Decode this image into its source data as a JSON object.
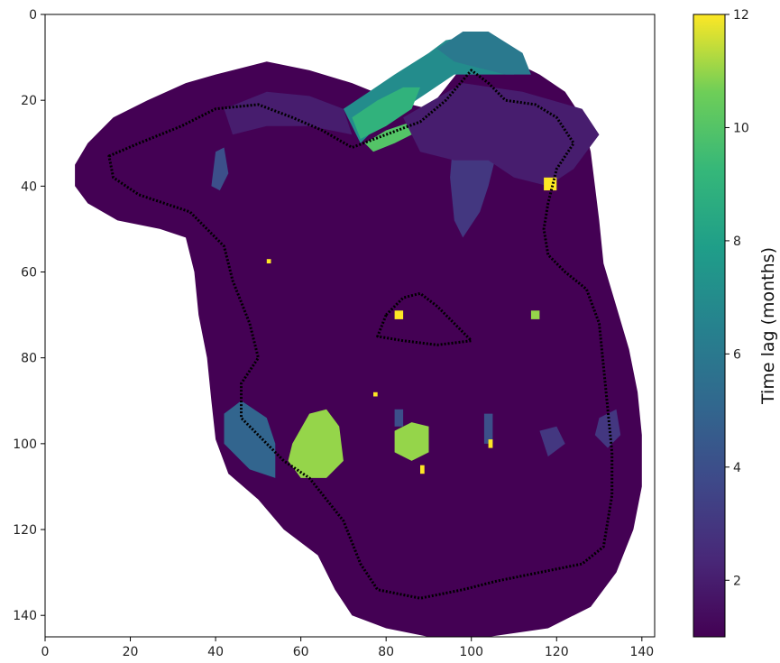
{
  "chart_data": {
    "type": "heatmap",
    "title": "",
    "xlabel": "",
    "ylabel": "",
    "xlim": [
      0,
      143
    ],
    "ylim": [
      0,
      145
    ],
    "y_inverted": true,
    "x_ticks": [
      0,
      20,
      40,
      60,
      80,
      100,
      120,
      140
    ],
    "x_tick_labels": [
      "0",
      "20",
      "40",
      "60",
      "80",
      "100",
      "120",
      "140"
    ],
    "y_ticks": [
      0,
      20,
      40,
      60,
      80,
      100,
      120,
      140
    ],
    "y_tick_labels": [
      "0",
      "20",
      "40",
      "60",
      "80",
      "100",
      "120",
      "140"
    ],
    "colormap": "viridis",
    "colorbar": {
      "label": "Time lag (months)",
      "min": 1,
      "max": 12,
      "ticks": [
        2,
        4,
        6,
        8,
        10,
        12
      ],
      "tick_labels": [
        "2",
        "4",
        "6",
        "8",
        "10",
        "12"
      ]
    },
    "background_value": 1,
    "domain_outline": [
      [
        7,
        35
      ],
      [
        10,
        30
      ],
      [
        16,
        24
      ],
      [
        24,
        20
      ],
      [
        33,
        16
      ],
      [
        40,
        14
      ],
      [
        52,
        11
      ],
      [
        62,
        13
      ],
      [
        72,
        16
      ],
      [
        82,
        20
      ],
      [
        90,
        22
      ],
      [
        98,
        12
      ],
      [
        102,
        8
      ],
      [
        108,
        10
      ],
      [
        116,
        14
      ],
      [
        122,
        18
      ],
      [
        126,
        24
      ],
      [
        128,
        32
      ],
      [
        129,
        40
      ],
      [
        130,
        48
      ],
      [
        131,
        58
      ],
      [
        134,
        68
      ],
      [
        137,
        78
      ],
      [
        139,
        88
      ],
      [
        140,
        98
      ],
      [
        140,
        110
      ],
      [
        138,
        120
      ],
      [
        134,
        130
      ],
      [
        128,
        138
      ],
      [
        118,
        143
      ],
      [
        104,
        145
      ],
      [
        90,
        145
      ],
      [
        80,
        143
      ],
      [
        72,
        140
      ],
      [
        68,
        134
      ],
      [
        64,
        126
      ],
      [
        56,
        120
      ],
      [
        50,
        113
      ],
      [
        43,
        107
      ],
      [
        40,
        99
      ],
      [
        39,
        90
      ],
      [
        38,
        80
      ],
      [
        36,
        70
      ],
      [
        35,
        60
      ],
      [
        33,
        52
      ],
      [
        27,
        50
      ],
      [
        17,
        48
      ],
      [
        10,
        44
      ],
      [
        7,
        40
      ]
    ],
    "basin_outline": [
      [
        15,
        33
      ],
      [
        22,
        30
      ],
      [
        32,
        26
      ],
      [
        40,
        22
      ],
      [
        50,
        21
      ],
      [
        58,
        24
      ],
      [
        65,
        27
      ],
      [
        72,
        31
      ],
      [
        80,
        28
      ],
      [
        88,
        25
      ],
      [
        94,
        20
      ],
      [
        100,
        13
      ],
      [
        104,
        16
      ],
      [
        108,
        20
      ],
      [
        115,
        21
      ],
      [
        120,
        24
      ],
      [
        124,
        30
      ],
      [
        120,
        36
      ],
      [
        118,
        44
      ],
      [
        117,
        50
      ],
      [
        118,
        56
      ],
      [
        122,
        60
      ],
      [
        127,
        64
      ],
      [
        130,
        72
      ],
      [
        131,
        82
      ],
      [
        132,
        92
      ],
      [
        133,
        102
      ],
      [
        133,
        112
      ],
      [
        131,
        124
      ],
      [
        126,
        128
      ],
      [
        116,
        130
      ],
      [
        106,
        132
      ],
      [
        98,
        134
      ],
      [
        88,
        136
      ],
      [
        78,
        134
      ],
      [
        74,
        128
      ],
      [
        70,
        118
      ],
      [
        62,
        108
      ],
      [
        56,
        104
      ],
      [
        50,
        98
      ],
      [
        46,
        94
      ],
      [
        46,
        86
      ],
      [
        50,
        80
      ],
      [
        48,
        72
      ],
      [
        44,
        62
      ],
      [
        42,
        54
      ],
      [
        34,
        46
      ],
      [
        22,
        42
      ],
      [
        16,
        38
      ]
    ],
    "inner_outline": [
      [
        80,
        70
      ],
      [
        84,
        66
      ],
      [
        88,
        65
      ],
      [
        92,
        68
      ],
      [
        96,
        72
      ],
      [
        100,
        76
      ],
      [
        92,
        77
      ],
      [
        84,
        76
      ],
      [
        78,
        75
      ]
    ],
    "patches": [
      {
        "value": 7,
        "points": [
          [
            70,
            22
          ],
          [
            76,
            18
          ],
          [
            82,
            14
          ],
          [
            90,
            9
          ],
          [
            94,
            6
          ],
          [
            100,
            5
          ],
          [
            106,
            6
          ],
          [
            112,
            10
          ],
          [
            110,
            14
          ],
          [
            102,
            14
          ],
          [
            96,
            14
          ],
          [
            90,
            18
          ],
          [
            84,
            22
          ],
          [
            78,
            26
          ],
          [
            74,
            30
          ]
        ]
      },
      {
        "value": 6,
        "points": [
          [
            92,
            8
          ],
          [
            98,
            4
          ],
          [
            104,
            4
          ],
          [
            112,
            9
          ],
          [
            114,
            14
          ],
          [
            108,
            14
          ],
          [
            100,
            12
          ],
          [
            96,
            11
          ]
        ]
      },
      {
        "value": 9,
        "points": [
          [
            72,
            24
          ],
          [
            78,
            20
          ],
          [
            84,
            17
          ],
          [
            88,
            17
          ],
          [
            86,
            22
          ],
          [
            80,
            26
          ],
          [
            74,
            29
          ]
        ]
      },
      {
        "value": 10,
        "points": [
          [
            75,
            30
          ],
          [
            80,
            27
          ],
          [
            86,
            25
          ],
          [
            88,
            27
          ],
          [
            82,
            30
          ],
          [
            77,
            32
          ]
        ]
      },
      {
        "value": 3,
        "points": [
          [
            96,
            26
          ],
          [
            104,
            24
          ],
          [
            106,
            32
          ],
          [
            104,
            40
          ],
          [
            102,
            46
          ],
          [
            98,
            52
          ],
          [
            96,
            48
          ],
          [
            95,
            38
          ]
        ]
      },
      {
        "value": 2,
        "points": [
          [
            84,
            24
          ],
          [
            98,
            16
          ],
          [
            112,
            18
          ],
          [
            126,
            22
          ],
          [
            130,
            28
          ],
          [
            124,
            36
          ],
          [
            118,
            40
          ],
          [
            110,
            38
          ],
          [
            104,
            34
          ],
          [
            96,
            34
          ],
          [
            88,
            32
          ]
        ]
      },
      {
        "value": 2,
        "points": [
          [
            42,
            22
          ],
          [
            52,
            18
          ],
          [
            62,
            19
          ],
          [
            70,
            22
          ],
          [
            72,
            28
          ],
          [
            62,
            26
          ],
          [
            52,
            26
          ],
          [
            44,
            28
          ]
        ]
      },
      {
        "value": 4,
        "points": [
          [
            40,
            32
          ],
          [
            42,
            31
          ],
          [
            43,
            37
          ],
          [
            41,
            41
          ],
          [
            39,
            40
          ]
        ]
      },
      {
        "value": 5,
        "points": [
          [
            42,
            93
          ],
          [
            46,
            90
          ],
          [
            52,
            94
          ],
          [
            54,
            100
          ],
          [
            54,
            108
          ],
          [
            48,
            106
          ],
          [
            42,
            100
          ]
        ]
      },
      {
        "value": 4,
        "points": [
          [
            82,
            92
          ],
          [
            84,
            92
          ],
          [
            84,
            96
          ],
          [
            82,
            96
          ]
        ]
      },
      {
        "value": 4,
        "points": [
          [
            103,
            93
          ],
          [
            105,
            93
          ],
          [
            105,
            100
          ],
          [
            103,
            100
          ]
        ]
      },
      {
        "value": 3,
        "points": [
          [
            116,
            97
          ],
          [
            120,
            96
          ],
          [
            122,
            100
          ],
          [
            118,
            103
          ]
        ]
      },
      {
        "value": 3,
        "points": [
          [
            130,
            94
          ],
          [
            134,
            92
          ],
          [
            135,
            98
          ],
          [
            132,
            101
          ],
          [
            129,
            98
          ]
        ]
      },
      {
        "value": 11,
        "points": [
          [
            58,
            100
          ],
          [
            62,
            93
          ],
          [
            66,
            92
          ],
          [
            69,
            96
          ],
          [
            70,
            104
          ],
          [
            66,
            108
          ],
          [
            60,
            108
          ],
          [
            57,
            104
          ]
        ]
      },
      {
        "value": 11,
        "points": [
          [
            82,
            97
          ],
          [
            86,
            95
          ],
          [
            90,
            96
          ],
          [
            90,
            102
          ],
          [
            86,
            104
          ],
          [
            82,
            102
          ]
        ]
      },
      {
        "value": 11,
        "points": [
          [
            114,
            69
          ],
          [
            116,
            69
          ],
          [
            116,
            71
          ],
          [
            114,
            71
          ]
        ]
      },
      {
        "value": 12,
        "points": [
          [
            117,
            38
          ],
          [
            120,
            38
          ],
          [
            120,
            41
          ],
          [
            117,
            41
          ]
        ]
      },
      {
        "value": 12,
        "points": [
          [
            82,
            69
          ],
          [
            84,
            69
          ],
          [
            84,
            71
          ],
          [
            82,
            71
          ]
        ]
      },
      {
        "value": 12,
        "points": [
          [
            88,
            105
          ],
          [
            89,
            105
          ],
          [
            89,
            107
          ],
          [
            88,
            107
          ]
        ]
      },
      {
        "value": 12,
        "points": [
          [
            104,
            99
          ],
          [
            105,
            99
          ],
          [
            105,
            101
          ],
          [
            104,
            101
          ]
        ]
      },
      {
        "value": 12,
        "points": [
          [
            52,
            57
          ],
          [
            53,
            57
          ],
          [
            53,
            58
          ],
          [
            52,
            58
          ]
        ]
      },
      {
        "value": 12,
        "points": [
          [
            77,
            88
          ],
          [
            78,
            88
          ],
          [
            78,
            89
          ],
          [
            77,
            89
          ]
        ]
      }
    ]
  }
}
